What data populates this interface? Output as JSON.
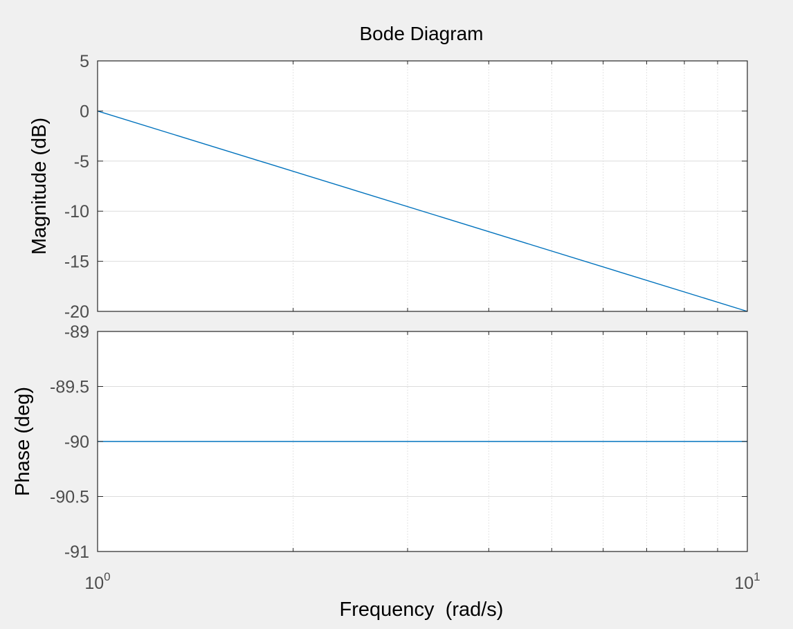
{
  "chart_data": {
    "type": "line",
    "title": "Bode Diagram",
    "xlabel": "Frequency  (rad/s)",
    "xscale": "log",
    "xlim": [
      1,
      10
    ],
    "x_ticks": [
      {
        "value": 1,
        "base": "10",
        "exp": "0"
      },
      {
        "value": 10,
        "base": "10",
        "exp": "1"
      }
    ],
    "grid": true,
    "colors": {
      "line": "#0072bd",
      "axes_bg": "#ffffff",
      "figure_bg": "#f0f0f0",
      "grid": "#dcdcdc",
      "axis": "#262626"
    },
    "panels": [
      {
        "name": "magnitude",
        "ylabel": "Magnitude (dB)",
        "ylim": [
          -20,
          5
        ],
        "yticks": [
          5,
          0,
          -5,
          -10,
          -15,
          -20
        ],
        "series": [
          {
            "x": [
              1,
              10
            ],
            "y": [
              0,
              -20
            ]
          }
        ]
      },
      {
        "name": "phase",
        "ylabel": "Phase (deg)",
        "ylim": [
          -91,
          -89
        ],
        "yticks": [
          -89,
          -89.5,
          -90,
          -90.5,
          -91
        ],
        "series": [
          {
            "x": [
              1,
              10
            ],
            "y": [
              -90,
              -90
            ]
          }
        ]
      }
    ]
  }
}
